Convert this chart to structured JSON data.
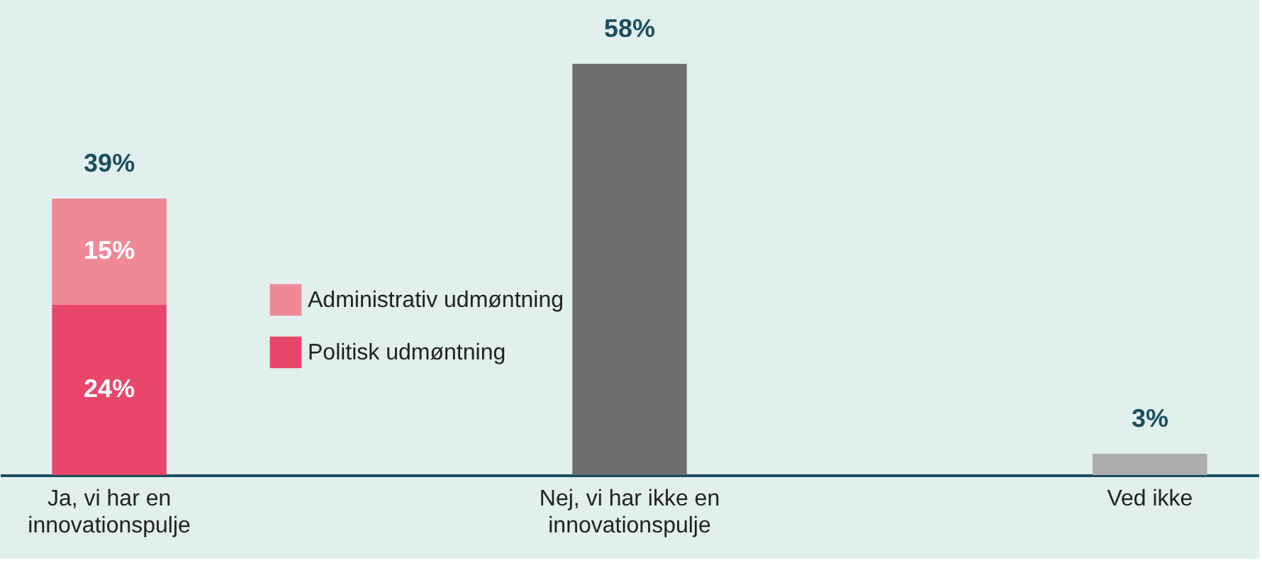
{
  "chart_data": {
    "type": "bar",
    "stacked": true,
    "categories": [
      "Ja, vi har en innovationspulje",
      "Nej, vi har ikke en innovationspulje",
      "Ved ikke"
    ],
    "series": [
      {
        "name": "Politisk udmøntning",
        "color": "#e8466a",
        "values": [
          24,
          null,
          null
        ],
        "value_labels": [
          "24%",
          null,
          null
        ]
      },
      {
        "name": "Administrativ udmøntning",
        "color": "#f08896",
        "values": [
          15,
          null,
          null
        ],
        "value_labels": [
          "15%",
          null,
          null
        ]
      },
      {
        "colors": [
          null,
          "#6e6e6e",
          "#adadad"
        ],
        "values": [
          null,
          58,
          3
        ]
      }
    ],
    "totals": [
      "39%",
      "58%",
      "3%"
    ],
    "ylim": [
      0,
      67
    ],
    "grid": false,
    "legend": "center"
  }
}
